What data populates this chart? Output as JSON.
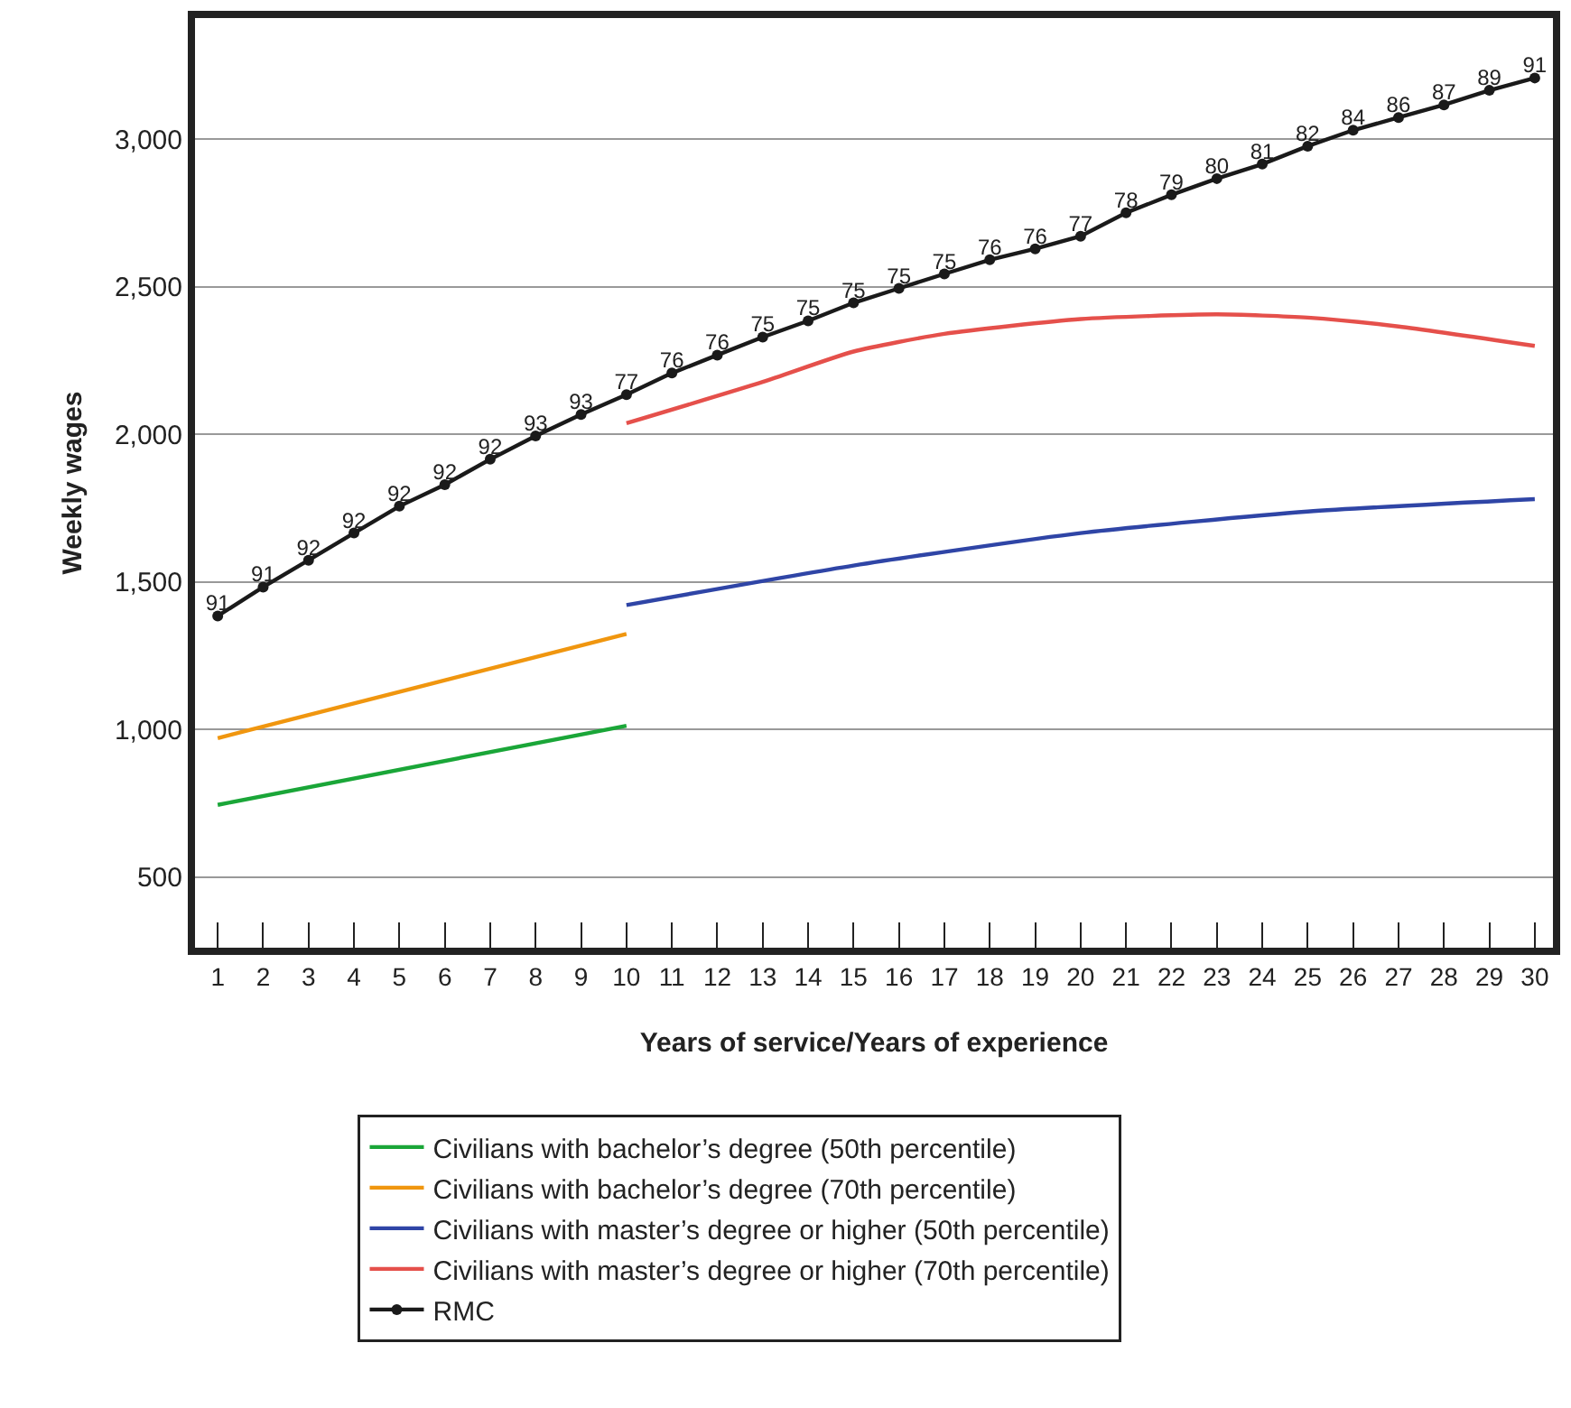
{
  "chart_data": {
    "type": "line",
    "xlabel": "Years of service/Years of experience",
    "ylabel": "Weekly wages",
    "xlim": [
      0.5,
      30.4
    ],
    "xticks": [
      1,
      2,
      3,
      4,
      5,
      6,
      7,
      8,
      9,
      10,
      11,
      12,
      13,
      14,
      15,
      16,
      17,
      18,
      19,
      20,
      21,
      22,
      23,
      24,
      25,
      26,
      27,
      28,
      29,
      30
    ],
    "ylim": [
      260,
      3410
    ],
    "yticks": [
      {
        "value": 500,
        "label": "500"
      },
      {
        "value": 1000,
        "label": "1,000"
      },
      {
        "value": 1500,
        "label": "1,500"
      },
      {
        "value": 2000,
        "label": "2,000"
      },
      {
        "value": 2500,
        "label": "2,500"
      },
      {
        "value": 3000,
        "label": "3,000"
      }
    ],
    "grid": "y",
    "legend": "bottom",
    "marker": "none",
    "line_style": "solid",
    "series": [
      {
        "name": "Civilians with bachelor’s degree (50th percentile)",
        "color": "#1aa638",
        "x": [
          1,
          10
        ],
        "values": [
          744,
          1012
        ]
      },
      {
        "name": "Civilians with bachelor’s degree (70th percentile)",
        "color": "#f0960f",
        "x": [
          1,
          10
        ],
        "values": [
          970,
          1323
        ]
      },
      {
        "name": "Civilians with master’s degree or higher (50th percentile)",
        "color": "#2f45a6",
        "x": [
          10,
          15,
          20,
          25,
          30
        ],
        "values": [
          1421,
          1555,
          1665,
          1738,
          1780
        ]
      },
      {
        "name": "Civilians with master’s degree or higher (70th percentile)",
        "color": "#e5504b",
        "x": [
          10,
          13,
          15,
          17,
          20,
          23,
          25,
          27,
          30
        ],
        "values": [
          2037,
          2177,
          2280,
          2340,
          2390,
          2406,
          2395,
          2365,
          2299
        ]
      },
      {
        "name": "RMC",
        "color": "#1a1a1a",
        "marker": "circle",
        "x": [
          1,
          2,
          3,
          4,
          5,
          6,
          7,
          8,
          9,
          10,
          11,
          12,
          13,
          14,
          15,
          16,
          17,
          18,
          19,
          20,
          21,
          22,
          23,
          24,
          25,
          26,
          27,
          28,
          29,
          30
        ],
        "values": [
          1384,
          1482,
          1573,
          1665,
          1756,
          1829,
          1915,
          1994,
          2067,
          2134,
          2207,
          2268,
          2329,
          2384,
          2445,
          2494,
          2543,
          2591,
          2628,
          2671,
          2750,
          2811,
          2866,
          2915,
          2976,
          3030,
          3073,
          3116,
          3165,
          3207
        ]
      }
    ],
    "annotations": [
      {
        "text": "91",
        "x": 1,
        "y": 1384
      },
      {
        "text": "91",
        "x": 2,
        "y": 1482
      },
      {
        "text": "92",
        "x": 3,
        "y": 1573
      },
      {
        "text": "92",
        "x": 4,
        "y": 1665
      },
      {
        "text": "92",
        "x": 5,
        "y": 1756
      },
      {
        "text": "92",
        "x": 6,
        "y": 1829
      },
      {
        "text": "92",
        "x": 7,
        "y": 1915
      },
      {
        "text": "93",
        "x": 8,
        "y": 1994
      },
      {
        "text": "93",
        "x": 9,
        "y": 2067
      },
      {
        "text": "77",
        "x": 10,
        "y": 2134
      },
      {
        "text": "76",
        "x": 11,
        "y": 2207
      },
      {
        "text": "76",
        "x": 12,
        "y": 2268
      },
      {
        "text": "75",
        "x": 13,
        "y": 2329
      },
      {
        "text": "75",
        "x": 14,
        "y": 2384
      },
      {
        "text": "75",
        "x": 15,
        "y": 2445
      },
      {
        "text": "75",
        "x": 16,
        "y": 2494
      },
      {
        "text": "75",
        "x": 17,
        "y": 2543
      },
      {
        "text": "76",
        "x": 18,
        "y": 2591
      },
      {
        "text": "76",
        "x": 19,
        "y": 2628
      },
      {
        "text": "77",
        "x": 20,
        "y": 2671
      },
      {
        "text": "78",
        "x": 21,
        "y": 2750
      },
      {
        "text": "79",
        "x": 22,
        "y": 2811
      },
      {
        "text": "80",
        "x": 23,
        "y": 2866
      },
      {
        "text": "81",
        "x": 24,
        "y": 2915
      },
      {
        "text": "82",
        "x": 25,
        "y": 2976
      },
      {
        "text": "84",
        "x": 26,
        "y": 3030
      },
      {
        "text": "86",
        "x": 27,
        "y": 3073
      },
      {
        "text": "87",
        "x": 28,
        "y": 3116
      },
      {
        "text": "89",
        "x": 29,
        "y": 3165
      },
      {
        "text": "91",
        "x": 30,
        "y": 3207
      }
    ]
  }
}
